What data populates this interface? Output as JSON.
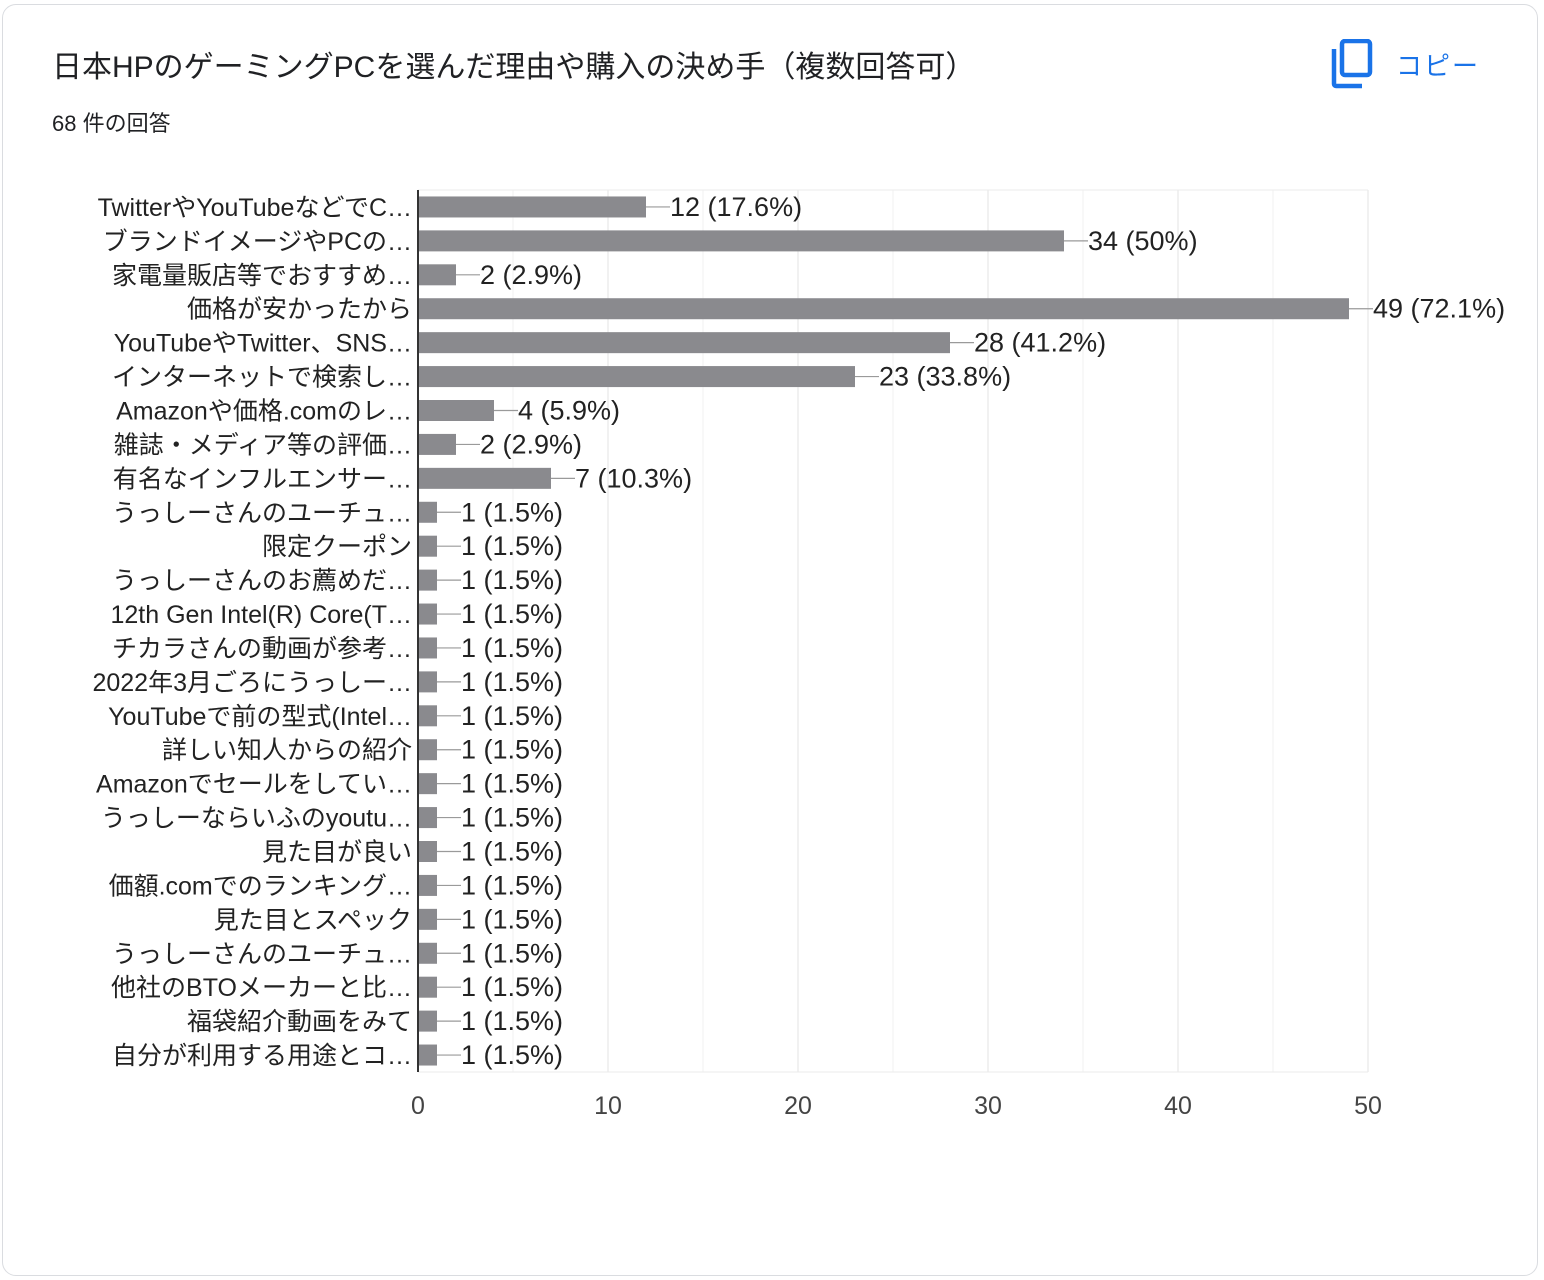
{
  "title": "日本HPのゲーミングPCを選んだ理由や購入の決め手（複数回答可）",
  "subtitle": "68 件の回答",
  "copy_label": "コピー",
  "colors": {
    "bar": "#8a8a8e",
    "accent": "#1a73e8",
    "grid": "#ebebeb",
    "axis": "#333333"
  },
  "chart_data": {
    "type": "bar",
    "orientation": "horizontal",
    "title": "日本HPのゲーミングPCを選んだ理由や購入の決め手（複数回答可）",
    "categories": [
      "TwitterやYouTubeなどでC…",
      "ブランドイメージやPCの…",
      "家電量販店等でおすすめ…",
      "価格が安かったから",
      "YouTubeやTwitter、SNS…",
      "インターネットで検索し…",
      "Amazonや価格.comのレ…",
      "雑誌・メディア等の評価…",
      "有名なインフルエンサー…",
      "うっしーさんのユーチュ…",
      "限定クーポン",
      "うっしーさんのお薦めだ…",
      "12th Gen Intel(R) Core(T…",
      "チカラさんの動画が参考…",
      "2022年3月ごろにうっしー…",
      "YouTubeで前の型式(Intel…",
      "詳しい知人からの紹介",
      "Amazonでセールをしてい…",
      "うっしーならいふのyoutu…",
      "見た目が良い",
      "価額.comでのランキング…",
      "見た目とスペック",
      "うっしーさんのユーチュ…",
      "他社のBTOメーカーと比…",
      "福袋紹介動画をみて",
      "自分が利用する用途とコ…"
    ],
    "values": [
      12,
      34,
      2,
      49,
      28,
      23,
      4,
      2,
      7,
      1,
      1,
      1,
      1,
      1,
      1,
      1,
      1,
      1,
      1,
      1,
      1,
      1,
      1,
      1,
      1,
      1
    ],
    "value_labels": [
      "12 (17.6%)",
      "34 (50%)",
      "2 (2.9%)",
      "49 (72.1%)",
      "28 (41.2%)",
      "23 (33.8%)",
      "4 (5.9%)",
      "2 (2.9%)",
      "7 (10.3%)",
      "1 (1.5%)",
      "1 (1.5%)",
      "1 (1.5%)",
      "1 (1.5%)",
      "1 (1.5%)",
      "1 (1.5%)",
      "1 (1.5%)",
      "1 (1.5%)",
      "1 (1.5%)",
      "1 (1.5%)",
      "1 (1.5%)",
      "1 (1.5%)",
      "1 (1.5%)",
      "1 (1.5%)",
      "1 (1.5%)",
      "1 (1.5%)",
      "1 (1.5%)"
    ],
    "xlim": [
      0,
      50
    ],
    "xticks": [
      0,
      10,
      20,
      30,
      40,
      50
    ],
    "grid": true,
    "xlabel": "",
    "ylabel": ""
  }
}
